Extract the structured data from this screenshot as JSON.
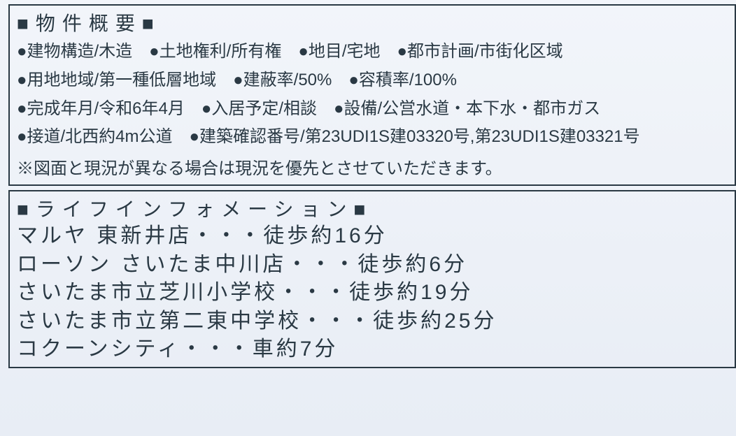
{
  "colors": {
    "text": "#2a3944",
    "border": "#2a3944",
    "bg_top": "#f2f5fa",
    "bg_bottom": "#e8edf5"
  },
  "overview": {
    "title": "■物件概要■",
    "lines": [
      "●建物構造/木造　●土地権利/所有権　●地目/宅地　●都市計画/市街化区域",
      "●用地地域/第一種低層地域　●建蔽率/50%　●容積率/100%",
      "●完成年月/令和6年4月　●入居予定/相談　●設備/公営水道・本下水・都市ガス",
      "●接道/北西約4m公道　●建築確認番号/第23UDI1S建03320号,第23UDI1S建03321号"
    ],
    "note": "※図面と現況が異なる場合は現況を優先とさせていただきます。"
  },
  "life": {
    "title": "■ライフインフォメーション■",
    "items": [
      {
        "name": "マルヤ 東新井店",
        "dist": "徒歩約16分"
      },
      {
        "name": "ローソン さいたま中川店",
        "dist": "徒歩約6分"
      },
      {
        "name": "さいたま市立芝川小学校",
        "dist": "徒歩約19分"
      },
      {
        "name": "さいたま市立第二東中学校",
        "dist": "徒歩約25分"
      },
      {
        "name": "コクーンシティ",
        "dist": "車約7分"
      }
    ]
  }
}
